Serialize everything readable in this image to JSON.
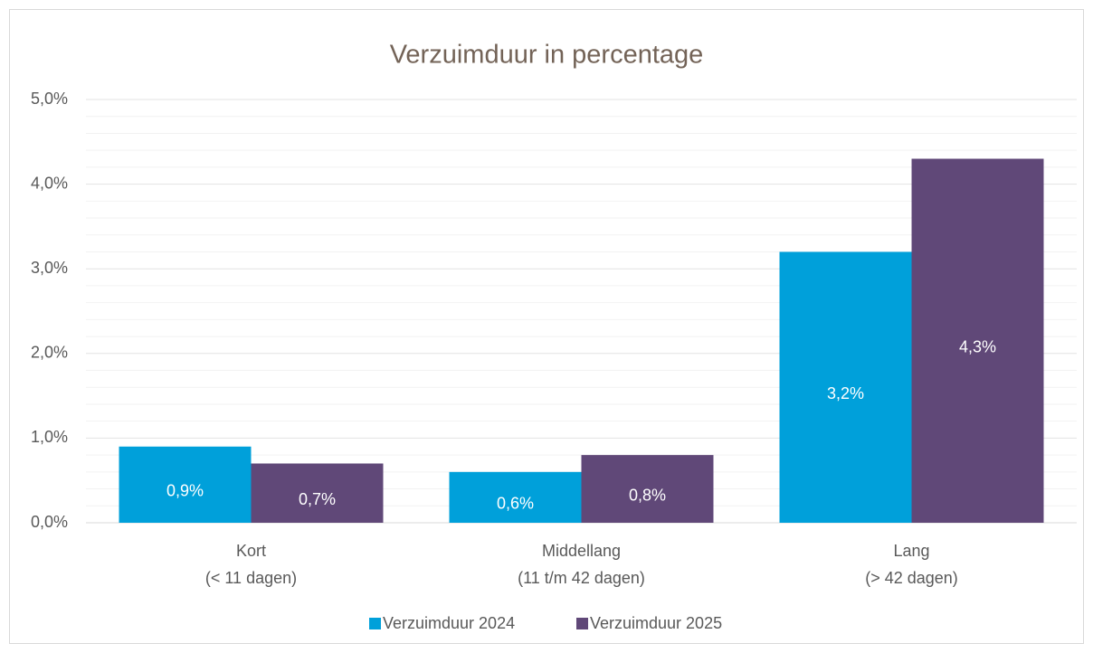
{
  "chart_data": {
    "type": "bar",
    "title": "Verzuimduur in percentage",
    "categories": [
      "Kort\n(< 11 dagen)",
      "Middellang\n(11 t/m 42 dagen)",
      "Lang\n(> 42 dagen)"
    ],
    "series": [
      {
        "name": "Verzuimduur 2024",
        "color": "#00a0da",
        "values": [
          0.9,
          0.6,
          3.2
        ],
        "value_labels": [
          "0,9%",
          "0,6%",
          "3,2%"
        ]
      },
      {
        "name": "Verzuimduur 2025",
        "color": "#604878",
        "values": [
          0.7,
          0.8,
          4.3
        ],
        "value_labels": [
          "0,7%",
          "0,8%",
          "4,3%"
        ]
      }
    ],
    "ylim": [
      0,
      5
    ],
    "yticks": [
      {
        "value": 0,
        "label": "0,0%"
      },
      {
        "value": 1,
        "label": "1,0%"
      },
      {
        "value": 2,
        "label": "2,0%"
      },
      {
        "value": 3,
        "label": "3,0%"
      },
      {
        "value": 4,
        "label": "4,0%"
      },
      {
        "value": 5,
        "label": "5,0%"
      }
    ],
    "yminorticks": [
      0.2,
      0.4,
      0.6,
      0.8,
      1.2,
      1.4,
      1.6,
      1.8,
      2.2,
      2.4,
      2.6,
      2.8,
      3.2,
      3.4,
      3.6,
      3.8,
      4.2,
      4.4,
      4.6,
      4.8
    ],
    "grid": true,
    "legend": "bottom"
  }
}
